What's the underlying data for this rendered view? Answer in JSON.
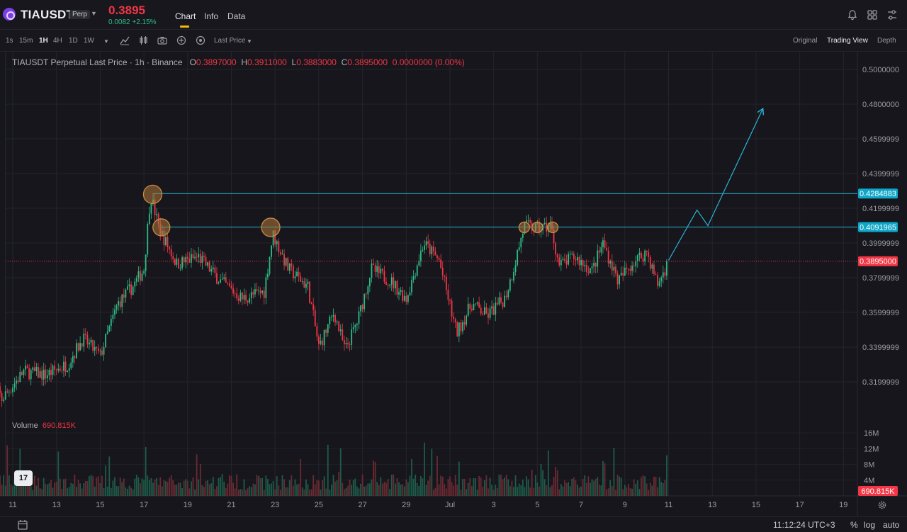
{
  "header": {
    "symbol": "TIAUSDT",
    "badge": "Perp",
    "price": "0.3895",
    "change": "0.0082 +2.15%",
    "tabs": [
      "Chart",
      "Info",
      "Data"
    ]
  },
  "toolbar": {
    "intervals": [
      "1s",
      "15m",
      "1H",
      "4H",
      "1D",
      "1W"
    ],
    "active_interval": "1H",
    "price_source": "Last Price",
    "views": [
      "Original",
      "Trading View",
      "Depth"
    ],
    "active_view": "Trading View"
  },
  "legend": {
    "title": "TIAUSDT Perpetual Last Price · 1h · Binance",
    "o_label": "O",
    "o": "0.3897000",
    "h_label": "H",
    "h": "0.3911000",
    "l_label": "L",
    "l": "0.3883000",
    "c_label": "C",
    "c": "0.3895000",
    "change": "0.0000000 (0.00%)"
  },
  "volume": {
    "label": "Volume",
    "value": "690.815K"
  },
  "footer": {
    "time": "11:12:24 UTC+3",
    "percent": "%",
    "log": "log",
    "auto": "auto"
  },
  "colors": {
    "up": "#2ebd85",
    "down": "#f23645",
    "line": "#29b6d6",
    "circle": "#b07a3c",
    "last_price": "#f23645"
  },
  "chart_data": {
    "type": "candlestick",
    "y_ticks": [
      "0.5000000",
      "0.4800000",
      "0.4599999",
      "0.4399999",
      "0.4199999",
      "0.3999999",
      "0.3799999",
      "0.3599999",
      "0.3399999",
      "0.3199999"
    ],
    "y_ticks_values": [
      0.5,
      0.48,
      0.46,
      0.44,
      0.42,
      0.4,
      0.38,
      0.36,
      0.34,
      0.32
    ],
    "volume_ticks": [
      "16M",
      "12M",
      "8M",
      "4M"
    ],
    "x_ticks": [
      "11",
      "13",
      "15",
      "17",
      "19",
      "21",
      "23",
      "25",
      "27",
      "29",
      "Jul",
      "3",
      "5",
      "7",
      "9",
      "11",
      "13",
      "15",
      "17",
      "19"
    ],
    "horizontal_levels": [
      {
        "price": 0.4284883,
        "label": "0.4284883"
      },
      {
        "price": 0.4091965,
        "label": "0.4091965"
      }
    ],
    "last_price": {
      "price": 0.3895,
      "label": "0.3895000"
    },
    "volume_last": "690.815K",
    "price_path_anchors": [
      {
        "day": 10.0,
        "price": 0.322
      },
      {
        "day": 10.5,
        "price": 0.31
      },
      {
        "day": 11.5,
        "price": 0.326
      },
      {
        "day": 12.5,
        "price": 0.324
      },
      {
        "day": 13.5,
        "price": 0.33
      },
      {
        "day": 14.2,
        "price": 0.345
      },
      {
        "day": 15.0,
        "price": 0.335
      },
      {
        "day": 15.8,
        "price": 0.365
      },
      {
        "day": 16.5,
        "price": 0.375
      },
      {
        "day": 17.0,
        "price": 0.385
      },
      {
        "day": 17.3,
        "price": 0.428
      },
      {
        "day": 17.7,
        "price": 0.408
      },
      {
        "day": 18.5,
        "price": 0.388
      },
      {
        "day": 19.5,
        "price": 0.392
      },
      {
        "day": 20.5,
        "price": 0.378
      },
      {
        "day": 21.5,
        "price": 0.368
      },
      {
        "day": 22.5,
        "price": 0.372
      },
      {
        "day": 22.9,
        "price": 0.405
      },
      {
        "day": 23.6,
        "price": 0.385
      },
      {
        "day": 24.5,
        "price": 0.375
      },
      {
        "day": 25.0,
        "price": 0.34
      },
      {
        "day": 25.7,
        "price": 0.36
      },
      {
        "day": 26.2,
        "price": 0.338
      },
      {
        "day": 26.8,
        "price": 0.356
      },
      {
        "day": 27.4,
        "price": 0.385
      },
      {
        "day": 28.3,
        "price": 0.378
      },
      {
        "day": 29.0,
        "price": 0.368
      },
      {
        "day": 29.8,
        "price": 0.4
      },
      {
        "day": 30.5,
        "price": 0.39
      },
      {
        "day": 31.3,
        "price": 0.348
      },
      {
        "day": 32.0,
        "price": 0.365
      },
      {
        "day": 32.7,
        "price": 0.358
      },
      {
        "day": 33.5,
        "price": 0.368
      },
      {
        "day": 33.8,
        "price": 0.38
      },
      {
        "day": 34.4,
        "price": 0.41
      },
      {
        "day": 35.0,
        "price": 0.408
      },
      {
        "day": 35.6,
        "price": 0.41
      },
      {
        "day": 36.0,
        "price": 0.387
      },
      {
        "day": 36.7,
        "price": 0.392
      },
      {
        "day": 37.5,
        "price": 0.384
      },
      {
        "day": 38.0,
        "price": 0.4
      },
      {
        "day": 38.7,
        "price": 0.378
      },
      {
        "day": 39.3,
        "price": 0.388
      },
      {
        "day": 40.0,
        "price": 0.395
      },
      {
        "day": 40.5,
        "price": 0.376
      },
      {
        "day": 41.0,
        "price": 0.3895
      }
    ],
    "projection": [
      {
        "day": 41.0,
        "price": 0.39
      },
      {
        "day": 42.3,
        "price": 0.419
      },
      {
        "day": 42.8,
        "price": 0.41
      },
      {
        "day": 45.3,
        "price": 0.477
      }
    ],
    "circled_highs": [
      {
        "day": 17.4,
        "price": 0.428,
        "size": "large"
      },
      {
        "day": 17.8,
        "price": 0.409,
        "size": "medium"
      },
      {
        "day": 22.8,
        "price": 0.409,
        "size": "large"
      },
      {
        "day": 34.4,
        "price": 0.409,
        "size": "small"
      },
      {
        "day": 35.0,
        "price": 0.409,
        "size": "small"
      },
      {
        "day": 35.7,
        "price": 0.409,
        "size": "small"
      }
    ]
  }
}
